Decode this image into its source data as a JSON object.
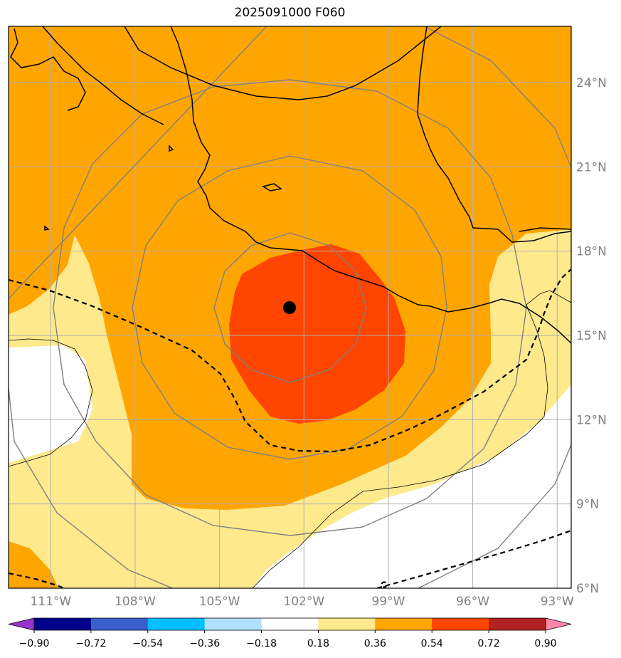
{
  "title": "2025091000 F060",
  "map": {
    "projection": "lat-lon",
    "lon_range": [
      -112.5,
      -92.5
    ],
    "lat_range": [
      6,
      26
    ],
    "lon_ticks": [
      {
        "value": -111,
        "label": "111°W"
      },
      {
        "value": -108,
        "label": "108°W"
      },
      {
        "value": -105,
        "label": "105°W"
      },
      {
        "value": -102,
        "label": "102°W"
      },
      {
        "value": -99,
        "label": "99°W"
      },
      {
        "value": -96,
        "label": "96°W"
      },
      {
        "value": -93,
        "label": "93°W"
      }
    ],
    "lat_ticks": [
      {
        "value": 6,
        "label": "6°N"
      },
      {
        "value": 9,
        "label": "9°N"
      },
      {
        "value": 12,
        "label": "12°N"
      },
      {
        "value": 15,
        "label": "15°N"
      },
      {
        "value": 18,
        "label": "18°N"
      },
      {
        "value": 21,
        "label": "21°N"
      },
      {
        "value": 24,
        "label": "24°N"
      }
    ],
    "grid": true,
    "storm_center": {
      "lon": -102.3,
      "lat": 15.9,
      "marker": "black-dot"
    },
    "range_rings_deg": [
      2.7,
      5.5,
      8.3,
      11.1
    ],
    "colors": {
      "background": "#ffffff",
      "band_0_18_to_0_36": "#ffe98d",
      "band_0_36_to_0_54": "#ffa500",
      "band_0_54_to_0_72": "#ff4500",
      "coastline": "#000000",
      "rings": "#808080",
      "gridlines": "#b0b0b0",
      "dashed_contour": "#000000"
    }
  },
  "colorbar": {
    "levels": [
      "−0.90",
      "−0.72",
      "−0.54",
      "−0.36",
      "−0.18",
      "0.18",
      "0.36",
      "0.54",
      "0.72",
      "0.90"
    ],
    "colors": [
      "#9933cc",
      "#00008b",
      "#3a5fcd",
      "#00bfff",
      "#b0e2ff",
      "#ffffff",
      "#ffe98d",
      "#ffa500",
      "#ff4500",
      "#b22222",
      "#ff88aa"
    ],
    "extend": "both"
  }
}
